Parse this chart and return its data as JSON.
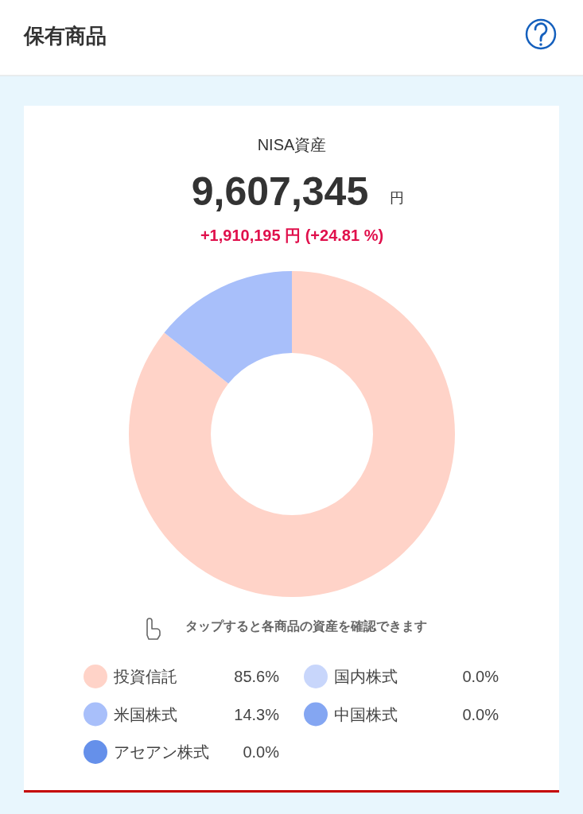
{
  "chart_data": {
    "type": "donut",
    "title": "保有商品",
    "subtitle": "NISA資産",
    "annotations": [
      "9,607,345",
      "円",
      "+1,910,195 円 (+24.81 %)",
      "タップすると各商品の資産を確認できます"
    ],
    "categories": [
      "投資信託",
      "国内株式",
      "米国株式",
      "中国株式",
      "アセアン株式"
    ],
    "values": [
      85.6,
      0.0,
      14.3,
      0.0,
      0.0
    ],
    "value_labels": [
      "85.6%",
      "0.0%",
      "14.3%",
      "0.0%",
      "0.0%"
    ],
    "colors": [
      "#ffd3c8",
      "#c8d6fb",
      "#a8bffa",
      "#84a6f2",
      "#6590ea"
    ],
    "legend": "bottom"
  }
}
